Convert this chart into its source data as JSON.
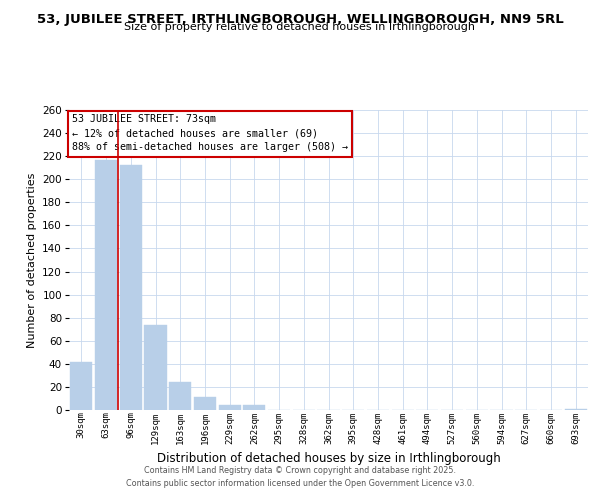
{
  "title": "53, JUBILEE STREET, IRTHLINGBOROUGH, WELLINGBOROUGH, NN9 5RL",
  "subtitle": "Size of property relative to detached houses in Irthlingborough",
  "xlabel": "Distribution of detached houses by size in Irthlingborough",
  "ylabel": "Number of detached properties",
  "bar_labels": [
    "30sqm",
    "63sqm",
    "96sqm",
    "129sqm",
    "163sqm",
    "196sqm",
    "229sqm",
    "262sqm",
    "295sqm",
    "328sqm",
    "362sqm",
    "395sqm",
    "428sqm",
    "461sqm",
    "494sqm",
    "527sqm",
    "560sqm",
    "594sqm",
    "627sqm",
    "660sqm",
    "693sqm"
  ],
  "bar_values": [
    42,
    217,
    212,
    74,
    24,
    11,
    4,
    4,
    0,
    0,
    0,
    0,
    0,
    0,
    0,
    0,
    0,
    0,
    0,
    0,
    1
  ],
  "bar_color": "#b8cfe8",
  "bar_edge_color": "#b8cfe8",
  "vline_x": 1.5,
  "vline_color": "#cc0000",
  "ylim": [
    0,
    260
  ],
  "yticks": [
    0,
    20,
    40,
    60,
    80,
    100,
    120,
    140,
    160,
    180,
    200,
    220,
    240,
    260
  ],
  "annotation_title": "53 JUBILEE STREET: 73sqm",
  "annotation_line1": "← 12% of detached houses are smaller (69)",
  "annotation_line2": "88% of semi-detached houses are larger (508) →",
  "annotation_box_color": "#ffffff",
  "annotation_box_edge": "#cc0000",
  "footer_line1": "Contains HM Land Registry data © Crown copyright and database right 2025.",
  "footer_line2": "Contains public sector information licensed under the Open Government Licence v3.0.",
  "bg_color": "#ffffff",
  "grid_color": "#c8d8ee"
}
